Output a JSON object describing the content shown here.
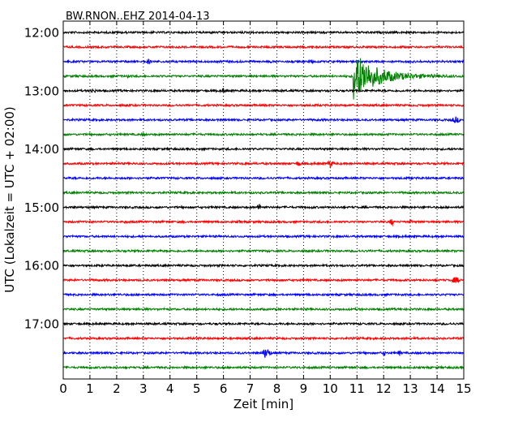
{
  "chart_data": {
    "type": "line",
    "title": "BW.RNON..EHZ 2014-04-13",
    "xlabel": "Zeit  [min]",
    "ylabel": "UTC (Lokalzeit = UTC + 02:00)",
    "xlim": [
      0,
      15
    ],
    "x_ticks": [
      "0",
      "1",
      "2",
      "3",
      "4",
      "5",
      "6",
      "7",
      "8",
      "9",
      "10",
      "11",
      "12",
      "13",
      "14",
      "15"
    ],
    "y_ticks": [
      "12:00",
      "13:00",
      "14:00",
      "15:00",
      "16:00",
      "17:00"
    ],
    "trace_interval_minutes": 15,
    "grid": "vertical-dotted",
    "colors": [
      "#000000",
      "#ff0000",
      "#0000ff",
      "#008000"
    ],
    "series": [
      {
        "start": "12:00",
        "color": "#000000",
        "events": []
      },
      {
        "start": "12:15",
        "color": "#ff0000",
        "events": []
      },
      {
        "start": "12:30",
        "color": "#0000ff",
        "events": [
          {
            "x": 3.2,
            "amp": 0.12,
            "dur": 0.15
          },
          {
            "x": 9.3,
            "amp": 0.1,
            "dur": 0.2
          }
        ]
      },
      {
        "start": "12:45",
        "color": "#008000",
        "events": [
          {
            "x": 10.85,
            "amp": 1.0,
            "dur": 4.1,
            "quake": true
          },
          {
            "x": 2.4,
            "amp": 0.1,
            "dur": 0.12
          }
        ]
      },
      {
        "start": "13:00",
        "color": "#000000",
        "events": [
          {
            "x": 1.1,
            "amp": 0.1,
            "dur": 0.3
          },
          {
            "x": 6.0,
            "amp": 0.12,
            "dur": 0.15
          }
        ]
      },
      {
        "start": "13:15",
        "color": "#ff0000",
        "events": []
      },
      {
        "start": "13:30",
        "color": "#0000ff",
        "events": [
          {
            "x": 14.7,
            "amp": 0.14,
            "dur": 0.3
          }
        ]
      },
      {
        "start": "13:45",
        "color": "#008000",
        "events": [
          {
            "x": 3.0,
            "amp": 0.08,
            "dur": 0.2
          }
        ]
      },
      {
        "start": "14:00",
        "color": "#000000",
        "events": []
      },
      {
        "start": "14:15",
        "color": "#ff0000",
        "events": [
          {
            "x": 10.0,
            "amp": 0.22,
            "dur": 0.15
          },
          {
            "x": 8.8,
            "amp": 0.12,
            "dur": 0.2
          }
        ]
      },
      {
        "start": "14:30",
        "color": "#0000ff",
        "events": []
      },
      {
        "start": "14:45",
        "color": "#008000",
        "events": []
      },
      {
        "start": "15:00",
        "color": "#000000",
        "events": [
          {
            "x": 7.35,
            "amp": 0.2,
            "dur": 0.12
          },
          {
            "x": 9.3,
            "amp": 0.08,
            "dur": 0.1
          }
        ]
      },
      {
        "start": "15:15",
        "color": "#ff0000",
        "events": [
          {
            "x": 12.3,
            "amp": 0.2,
            "dur": 0.1
          },
          {
            "x": 13.0,
            "amp": 0.12,
            "dur": 0.1
          },
          {
            "x": 1.0,
            "amp": 0.08,
            "dur": 0.1
          },
          {
            "x": 2.3,
            "amp": 0.08,
            "dur": 0.1
          },
          {
            "x": 6.6,
            "amp": 0.08,
            "dur": 0.1
          }
        ]
      },
      {
        "start": "15:30",
        "color": "#0000ff",
        "events": []
      },
      {
        "start": "15:45",
        "color": "#008000",
        "events": []
      },
      {
        "start": "16:00",
        "color": "#000000",
        "events": [
          {
            "x": 2.5,
            "amp": 0.08,
            "dur": 0.1
          }
        ]
      },
      {
        "start": "16:15",
        "color": "#ff0000",
        "events": [
          {
            "x": 14.7,
            "amp": 0.14,
            "dur": 0.3
          }
        ]
      },
      {
        "start": "16:30",
        "color": "#0000ff",
        "events": []
      },
      {
        "start": "16:45",
        "color": "#008000",
        "events": []
      },
      {
        "start": "17:00",
        "color": "#000000",
        "events": []
      },
      {
        "start": "17:15",
        "color": "#ff0000",
        "events": [
          {
            "x": 5.0,
            "amp": 0.08,
            "dur": 0.1
          }
        ]
      },
      {
        "start": "17:30",
        "color": "#0000ff",
        "events": [
          {
            "x": 7.6,
            "amp": 0.24,
            "dur": 0.25
          },
          {
            "x": 12.0,
            "amp": 0.12,
            "dur": 0.15
          },
          {
            "x": 12.6,
            "amp": 0.12,
            "dur": 0.15
          }
        ]
      },
      {
        "start": "17:45",
        "color": "#008000",
        "events": []
      }
    ]
  }
}
